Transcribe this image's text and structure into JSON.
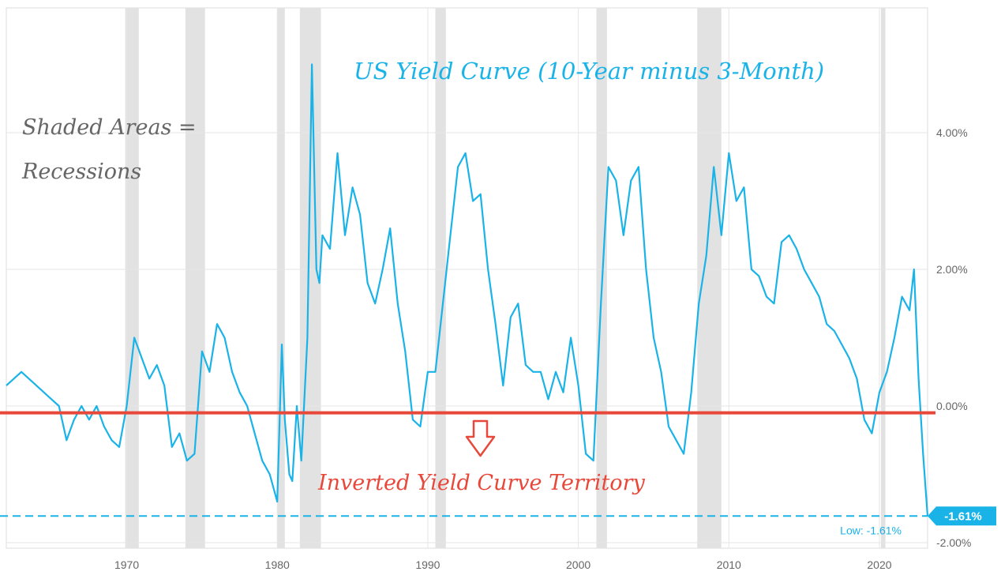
{
  "chart_data": {
    "type": "line",
    "title": "US Yield Curve (10-Year minus 3-Month)",
    "annotation_shaded": [
      "Shaded Areas =",
      "Recessions"
    ],
    "annotation_inverted": "Inverted Yield Curve Territory",
    "low_badge": "-1.61%",
    "low_label": "Low: -1.61%",
    "low_value": -1.61,
    "zero_line_value": -0.1,
    "xlim": [
      1962,
      2023.2
    ],
    "ylim": [
      -2.0,
      6.0
    ],
    "y_ticks": [
      {
        "value": 4,
        "label": "4.00%"
      },
      {
        "value": 2,
        "label": "2.00%"
      },
      {
        "value": 0,
        "label": "0.00%"
      },
      {
        "value": -2,
        "label": "-2.00%"
      }
    ],
    "x_ticks": [
      {
        "value": 1970,
        "label": "1970"
      },
      {
        "value": 1980,
        "label": "1980"
      },
      {
        "value": 1990,
        "label": "1990"
      },
      {
        "value": 2000,
        "label": "2000"
      },
      {
        "value": 2010,
        "label": "2010"
      },
      {
        "value": 2020,
        "label": "2020"
      }
    ],
    "recessions": [
      [
        1969.9,
        1970.8
      ],
      [
        1973.9,
        1975.2
      ],
      [
        1980.0,
        1980.5
      ],
      [
        1981.5,
        1982.9
      ],
      [
        1990.5,
        1991.2
      ],
      [
        2001.2,
        2001.9
      ],
      [
        2007.9,
        2009.5
      ],
      [
        2020.1,
        2020.4
      ]
    ],
    "colors": {
      "line": "#1ab3e8",
      "zero_line": "#e8483a",
      "low_line": "#1ab3e8",
      "recession": "#e2e2e2",
      "grid": "#e6e6e6",
      "title": "#1ab3e8",
      "annotation": "#666666",
      "inverted_text": "#e8483a"
    },
    "series": [
      {
        "x": [
          1962.0,
          1963.0,
          1964.0,
          1965.0,
          1965.5,
          1966.0,
          1966.5,
          1967.0,
          1967.5,
          1968.0,
          1968.5,
          1969.0,
          1969.5,
          1970.0,
          1970.5,
          1971.0,
          1971.5,
          1972.0,
          1972.5,
          1973.0,
          1973.5,
          1974.0,
          1974.5,
          1975.0,
          1975.5,
          1976.0,
          1976.5,
          1977.0,
          1977.5,
          1978.0,
          1978.5,
          1979.0,
          1979.5,
          1980.0,
          1980.3,
          1980.5,
          1980.8,
          1981.0,
          1981.3,
          1981.6,
          1982.0,
          1982.3,
          1982.6,
          1982.8,
          1983.0,
          1983.5,
          1984.0,
          1984.5,
          1985.0,
          1985.5,
          1986.0,
          1986.5,
          1987.0,
          1987.5,
          1988.0,
          1988.5,
          1989.0,
          1989.5,
          1990.0,
          1990.5,
          1991.0,
          1991.5,
          1992.0,
          1992.5,
          1993.0,
          1993.5,
          1994.0,
          1994.5,
          1995.0,
          1995.5,
          1996.0,
          1996.5,
          1997.0,
          1997.5,
          1998.0,
          1998.5,
          1999.0,
          1999.5,
          2000.0,
          2000.5,
          2001.0,
          2001.5,
          2002.0,
          2002.5,
          2003.0,
          2003.5,
          2004.0,
          2004.5,
          2005.0,
          2005.5,
          2006.0,
          2006.5,
          2007.0,
          2007.5,
          2008.0,
          2008.5,
          2009.0,
          2009.5,
          2010.0,
          2010.5,
          2011.0,
          2011.5,
          2012.0,
          2012.5,
          2013.0,
          2013.5,
          2014.0,
          2014.5,
          2015.0,
          2015.5,
          2016.0,
          2016.5,
          2017.0,
          2017.5,
          2018.0,
          2018.5,
          2019.0,
          2019.5,
          2020.0,
          2020.5,
          2021.0,
          2021.5,
          2022.0,
          2022.3,
          2022.6,
          2022.9,
          2023.2
        ],
        "values": [
          0.3,
          0.5,
          0.3,
          0.1,
          0.0,
          -0.5,
          -0.2,
          0.0,
          -0.2,
          0.0,
          -0.3,
          -0.5,
          -0.6,
          0.0,
          1.0,
          0.7,
          0.4,
          0.6,
          0.3,
          -0.6,
          -0.4,
          -0.8,
          -0.7,
          0.8,
          0.5,
          1.2,
          1.0,
          0.5,
          0.2,
          0.0,
          -0.4,
          -0.8,
          -1.0,
          -1.4,
          0.9,
          -0.2,
          -1.0,
          -1.1,
          0.0,
          -0.8,
          1.0,
          5.0,
          2.0,
          1.8,
          2.5,
          2.3,
          3.7,
          2.5,
          3.2,
          2.8,
          1.8,
          1.5,
          2.0,
          2.6,
          1.5,
          0.8,
          -0.2,
          -0.3,
          0.5,
          0.5,
          1.5,
          2.5,
          3.5,
          3.7,
          3.0,
          3.1,
          2.0,
          1.2,
          0.3,
          1.3,
          1.5,
          0.6,
          0.5,
          0.5,
          0.1,
          0.5,
          0.2,
          1.0,
          0.3,
          -0.7,
          -0.8,
          1.5,
          3.5,
          3.3,
          2.5,
          3.3,
          3.5,
          2.0,
          1.0,
          0.5,
          -0.3,
          -0.5,
          -0.7,
          0.2,
          1.5,
          2.2,
          3.5,
          2.5,
          3.7,
          3.0,
          3.2,
          2.0,
          1.9,
          1.6,
          1.5,
          2.4,
          2.5,
          2.3,
          2.0,
          1.8,
          1.6,
          1.2,
          1.1,
          0.9,
          0.7,
          0.4,
          -0.2,
          -0.4,
          0.2,
          0.5,
          1.0,
          1.6,
          1.4,
          2.0,
          0.4,
          -0.7,
          -1.61
        ]
      }
    ]
  }
}
